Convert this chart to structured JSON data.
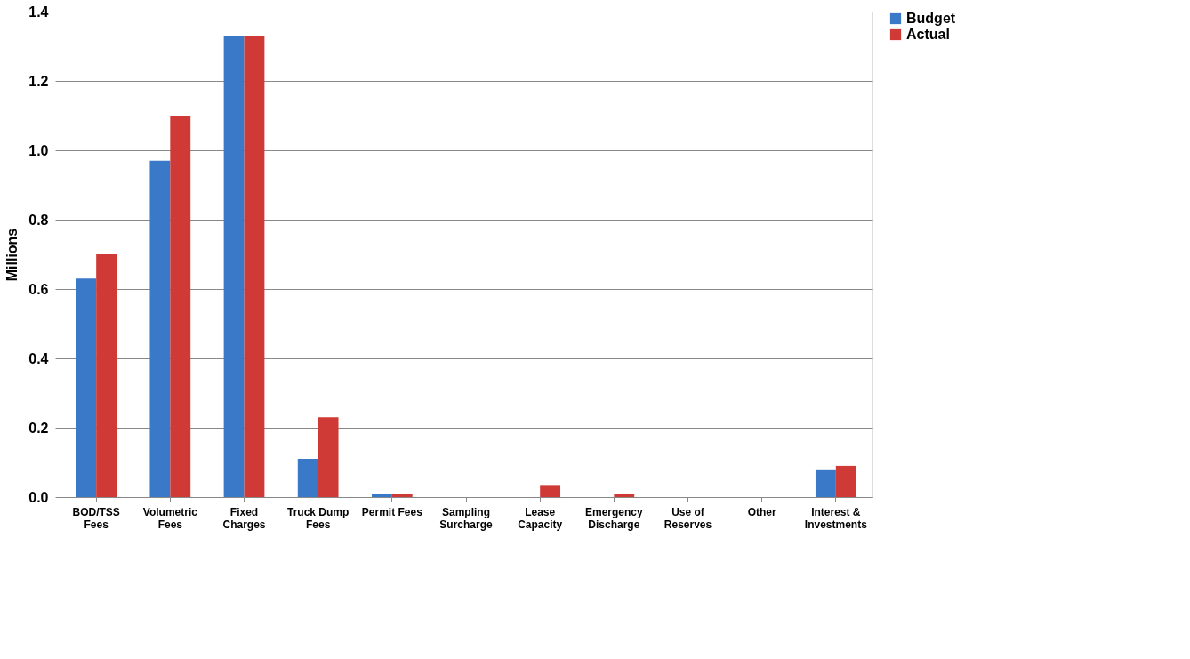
{
  "chart_data": {
    "type": "bar",
    "categories": [
      "BOD/TSS\nFees",
      "Volumetric\nFees",
      "Fixed\nCharges",
      "Truck Dump\nFees",
      "Permit Fees",
      "Sampling\nSurcharge",
      "Lease\nCapacity",
      "Emergency\nDischarge",
      "Use of\nReserves",
      "Other",
      "Interest &\nInvestments"
    ],
    "ylabel": "Millions",
    "series": [
      {
        "name": "Budget",
        "color": "#3a78c8",
        "values": [
          0.63,
          0.97,
          1.33,
          0.11,
          0.01,
          0,
          0,
          0,
          0,
          0,
          0.08
        ]
      },
      {
        "name": "Actual",
        "color": "#d03a36",
        "values": [
          0.7,
          1.1,
          1.33,
          0.23,
          0.01,
          0,
          0.035,
          0.01,
          0,
          0,
          0.09
        ]
      }
    ],
    "ylim": [
      0,
      1.4
    ],
    "yticks": [
      {
        "value": 0,
        "label": "0.0"
      },
      {
        "value": 0.2,
        "label": "0.2"
      },
      {
        "value": 0.4,
        "label": "0.4"
      },
      {
        "value": 0.6,
        "label": "0.6"
      },
      {
        "value": 0.8,
        "label": "0.8"
      },
      {
        "value": 1.0,
        "label": "1.0"
      },
      {
        "value": 1.2,
        "label": "1.2"
      },
      {
        "value": 1.4,
        "label": "1.4"
      }
    ],
    "grid": "y",
    "legend": "right"
  }
}
